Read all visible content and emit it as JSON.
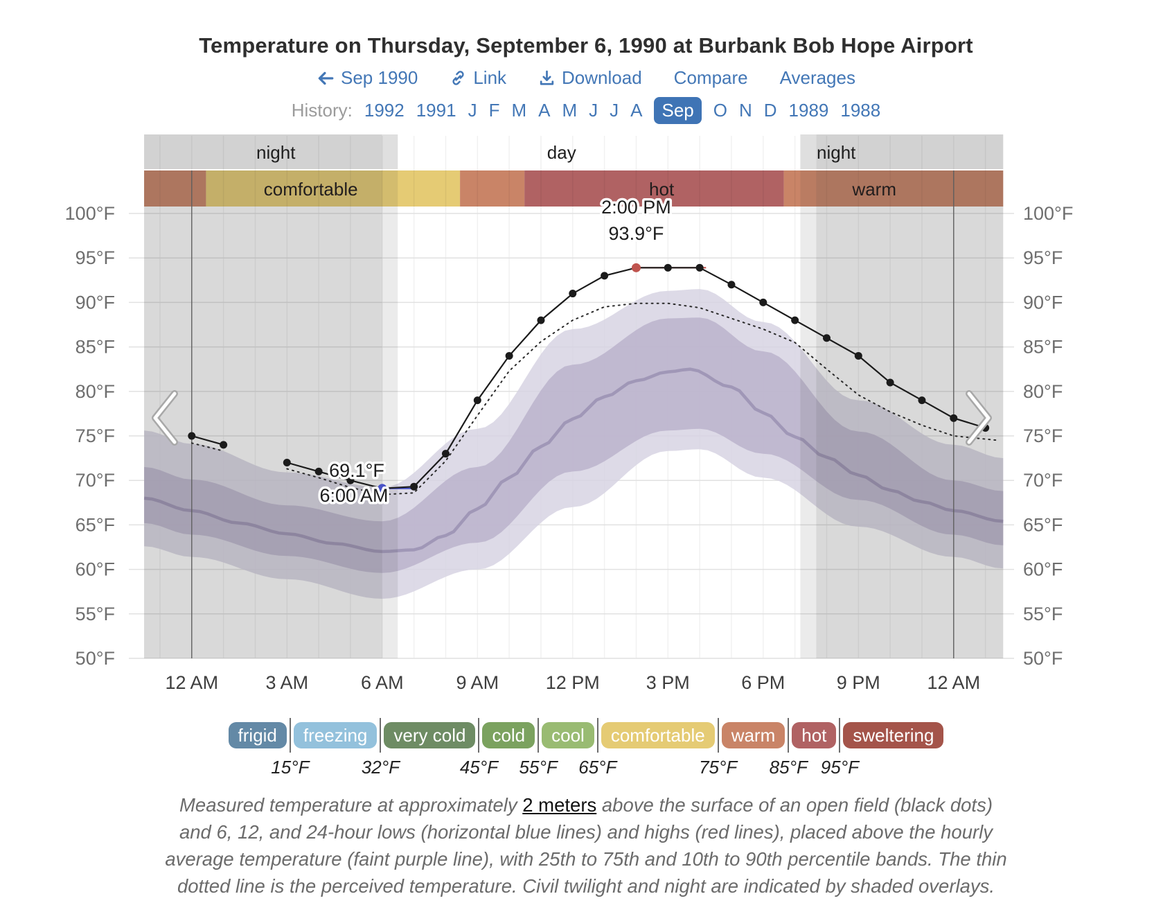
{
  "title": "Temperature on Thursday, September 6, 1990 at Burbank Bob Hope Airport",
  "toolbar": {
    "back_label": "Sep 1990",
    "link_label": "Link",
    "download_label": "Download",
    "compare_label": "Compare",
    "averages_label": "Averages"
  },
  "history": {
    "label": "History:",
    "items": [
      {
        "label": "1992"
      },
      {
        "label": "1991"
      },
      {
        "label": "J"
      },
      {
        "label": "F"
      },
      {
        "label": "M"
      },
      {
        "label": "A"
      },
      {
        "label": "M"
      },
      {
        "label": "J"
      },
      {
        "label": "J"
      },
      {
        "label": "A"
      },
      {
        "label": "Sep",
        "selected": true
      },
      {
        "label": "O"
      },
      {
        "label": "N"
      },
      {
        "label": "D"
      },
      {
        "label": "1989"
      },
      {
        "label": "1988"
      }
    ]
  },
  "colors": {
    "accent_blue": "#4377b6",
    "chip_bg": "#3f74b5",
    "title_text": "#2f2f2f",
    "grid_h": "#e1e1e1",
    "grid_v": "rgba(0,0,0,0.055)",
    "strip_gray": "#d2d2d2",
    "strip_gray_light": "#dfdfdf",
    "overlay_fill": "#3f3f3f",
    "midnight_line": "#5f5f5f",
    "band_10_90": "#d6d2e2",
    "band_25_75": "#b9b1cb",
    "mean_line": "#9c93b4",
    "measured_line": "#1b1b1b",
    "perceived_line": "#2a2a2a",
    "low_dot": "#4953c6",
    "high_dot": "#bf544e",
    "low_line": "#4953c6",
    "high_line": "#c0504a",
    "axis_y_text": "#6e6e6e",
    "axis_x_text": "#3e3e3e",
    "annotation_text": "#1d1d1d",
    "strip_label_text": "#1e1e1e",
    "band_label_text": "#211d1d",
    "chevron_outer": "#a8a8a8",
    "chevron_inner": "#ffffff"
  },
  "chart_data": {
    "type": "line",
    "title": "Temperature on Thursday, September 6, 1990 at Burbank Bob Hope Airport",
    "ylabel": "°F",
    "y_axis": {
      "min": 50,
      "max": 100,
      "step": 5,
      "unit": "°F",
      "labels": [
        "50°F",
        "55°F",
        "60°F",
        "65°F",
        "70°F",
        "75°F",
        "80°F",
        "85°F",
        "90°F",
        "95°F",
        "100°F"
      ]
    },
    "x_axis": {
      "tick_hours": [
        0,
        3,
        6,
        9,
        12,
        15,
        18,
        21,
        24
      ],
      "labels": [
        "12 AM",
        "3 AM",
        "6 AM",
        "9 AM",
        "12 PM",
        "3 PM",
        "6 PM",
        "9 PM",
        "12 AM"
      ],
      "domain_hours": [
        -1.5,
        25.56
      ]
    },
    "grid": true,
    "day_night_strip": [
      {
        "label": "night",
        "kind": "night",
        "from": -1.5,
        "to": 6.0
      },
      {
        "label": "",
        "kind": "twilight",
        "from": 6.0,
        "to": 6.49
      },
      {
        "label": "day",
        "kind": "day",
        "from": 6.49,
        "to": 19.17
      },
      {
        "label": "",
        "kind": "twilight",
        "from": 19.17,
        "to": 19.67
      },
      {
        "label": "night",
        "kind": "night",
        "from": 19.67,
        "to": 25.56
      }
    ],
    "strip_labels": [
      {
        "label": "night",
        "t": 2.65
      },
      {
        "label": "day",
        "t": 11.65
      },
      {
        "label": "night",
        "t": 20.3
      }
    ],
    "comfort_band": [
      {
        "label": "warm",
        "color": "#c98467",
        "from": -1.5,
        "to": 0.45
      },
      {
        "label": "comfortable",
        "color": "#e5cb74",
        "from": 0.45,
        "to": 8.45
      },
      {
        "label": "warm",
        "color": "#c98467",
        "from": 8.45,
        "to": 10.48
      },
      {
        "label": "hot",
        "color": "#b06263",
        "from": 10.48,
        "to": 18.65
      },
      {
        "label": "warm",
        "color": "#c98467",
        "from": 18.65,
        "to": 25.56
      }
    ],
    "comfort_band_labels": [
      {
        "label": "comfortable",
        "t": 3.75
      },
      {
        "label": "hot",
        "t": 14.8
      },
      {
        "label": "warm",
        "t": 21.5
      }
    ],
    "measured_segments": [
      [
        [
          0,
          75
        ],
        [
          1,
          74
        ]
      ],
      [
        [
          3,
          72
        ],
        [
          4,
          71
        ],
        [
          5,
          70
        ],
        [
          6,
          69.1
        ],
        [
          7,
          69.3
        ],
        [
          8,
          73
        ],
        [
          9,
          79
        ],
        [
          10,
          84
        ],
        [
          11,
          88
        ],
        [
          12,
          91
        ],
        [
          13,
          93
        ],
        [
          14,
          93.9
        ],
        [
          15,
          93.9
        ],
        [
          16,
          93.9
        ],
        [
          17,
          92
        ],
        [
          18,
          90
        ],
        [
          19,
          88
        ],
        [
          20,
          86
        ],
        [
          21,
          84
        ],
        [
          22,
          81
        ],
        [
          23,
          79
        ],
        [
          24,
          77
        ],
        [
          25,
          75.9
        ]
      ]
    ],
    "perceived_segments": [
      [
        [
          0,
          74.2
        ],
        [
          1,
          73.3
        ]
      ],
      [
        [
          3,
          71.3
        ],
        [
          4,
          70.3
        ],
        [
          5,
          69.2
        ],
        [
          6,
          68.4
        ],
        [
          7,
          68.6
        ],
        [
          8,
          72.2
        ],
        [
          9,
          77.3
        ],
        [
          10,
          82.3
        ],
        [
          11,
          85.6
        ],
        [
          12,
          88
        ],
        [
          13,
          89.5
        ],
        [
          14,
          89.9
        ],
        [
          15,
          89.9
        ],
        [
          16,
          89.4
        ],
        [
          17,
          88.2
        ],
        [
          18,
          87
        ],
        [
          19,
          85.5
        ],
        [
          20,
          82.5
        ],
        [
          21,
          79.6
        ],
        [
          22,
          77.7
        ],
        [
          23,
          76.2
        ],
        [
          24,
          75
        ],
        [
          25.4,
          74.5
        ]
      ]
    ],
    "mean": [
      [
        -1.5,
        68
      ],
      [
        0,
        66.6
      ],
      [
        1.5,
        65.2
      ],
      [
        3,
        64
      ],
      [
        4.5,
        62.9
      ],
      [
        6,
        62
      ],
      [
        7,
        62.2
      ],
      [
        8,
        63.8
      ],
      [
        9,
        66.8
      ],
      [
        10,
        70.3
      ],
      [
        11,
        73.8
      ],
      [
        12,
        76.9
      ],
      [
        13,
        79.4
      ],
      [
        14,
        81.2
      ],
      [
        15,
        82.2
      ],
      [
        15.7,
        82.5
      ],
      [
        17,
        80.5
      ],
      [
        18,
        77.6
      ],
      [
        19,
        74.9
      ],
      [
        20,
        72.6
      ],
      [
        21,
        70.6
      ],
      [
        22,
        68.9
      ],
      [
        23,
        67.6
      ],
      [
        24,
        66.6
      ],
      [
        25.56,
        65.4
      ]
    ],
    "p75": [
      [
        -1.5,
        71.5
      ],
      [
        0,
        70.1
      ],
      [
        3,
        67.2
      ],
      [
        6,
        65.4
      ],
      [
        9,
        71.5
      ],
      [
        12,
        83
      ],
      [
        15,
        88.2
      ],
      [
        16,
        88.3
      ],
      [
        18,
        84.5
      ],
      [
        21,
        75.5
      ],
      [
        24,
        70
      ],
      [
        25.56,
        68.8
      ]
    ],
    "p25": [
      [
        -1.5,
        65.2
      ],
      [
        0,
        63.9
      ],
      [
        3,
        61.5
      ],
      [
        6,
        59.6
      ],
      [
        9,
        63
      ],
      [
        12,
        71
      ],
      [
        15,
        75.6
      ],
      [
        16,
        75.8
      ],
      [
        18,
        73
      ],
      [
        21,
        67.8
      ],
      [
        24,
        63.9
      ],
      [
        25.56,
        62.7
      ]
    ],
    "p90": [
      [
        -1.5,
        75.6
      ],
      [
        0,
        74.1
      ],
      [
        3,
        70.9
      ],
      [
        6,
        69.2
      ],
      [
        9,
        75.8
      ],
      [
        12,
        87
      ],
      [
        15,
        91.3
      ],
      [
        16,
        91.5
      ],
      [
        18,
        87.8
      ],
      [
        21,
        79
      ],
      [
        24,
        74
      ],
      [
        25.56,
        72.5
      ]
    ],
    "p10": [
      [
        -1.5,
        62.6
      ],
      [
        0,
        61.4
      ],
      [
        3,
        58.9
      ],
      [
        6,
        56.7
      ],
      [
        9,
        60
      ],
      [
        12,
        67
      ],
      [
        15,
        73.3
      ],
      [
        16,
        73.5
      ],
      [
        18,
        70.3
      ],
      [
        21,
        64.8
      ],
      [
        24,
        61.4
      ],
      [
        25.56,
        60.1
      ]
    ],
    "high": {
      "time": "2:00 PM",
      "value": "93.9°F",
      "t": 14,
      "temp": 93.9,
      "line_from": 13.95,
      "line_to": 16.2
    },
    "low": {
      "time": "6:00 AM",
      "value": "69.1°F",
      "t": 6,
      "temp": 69.1,
      "line_from": 5.75,
      "line_to": 7.05
    }
  },
  "legend": {
    "pills": [
      {
        "label": "frigid",
        "color": "#6389a6"
      },
      {
        "label": "freezing",
        "color": "#93c1dc"
      },
      {
        "label": "very cold",
        "color": "#6e8c64"
      },
      {
        "label": "cold",
        "color": "#7ba25f"
      },
      {
        "label": "cool",
        "color": "#99bb72"
      },
      {
        "label": "comfortable",
        "color": "#e5cb74"
      },
      {
        "label": "warm",
        "color": "#c98467"
      },
      {
        "label": "hot",
        "color": "#b06263"
      },
      {
        "label": "sweltering",
        "color": "#a4544a"
      }
    ],
    "thresholds": [
      "15°F",
      "32°F",
      "45°F",
      "55°F",
      "65°F",
      "75°F",
      "85°F",
      "95°F"
    ]
  },
  "footer": {
    "line1_pre": "Measured temperature at approximately ",
    "meters_link": "2 meters",
    "line1_post": " above the surface of an open field (black dots)",
    "line2": "and 6, 12, and 24-hour lows (horizontal blue lines) and highs (red lines), placed above the hourly",
    "line3": "average temperature (faint purple line), with 25th to 75th and 10th to 90th percentile bands. The thin",
    "line4": "dotted line is the perceived temperature. Civil twilight and night are indicated by shaded overlays."
  }
}
